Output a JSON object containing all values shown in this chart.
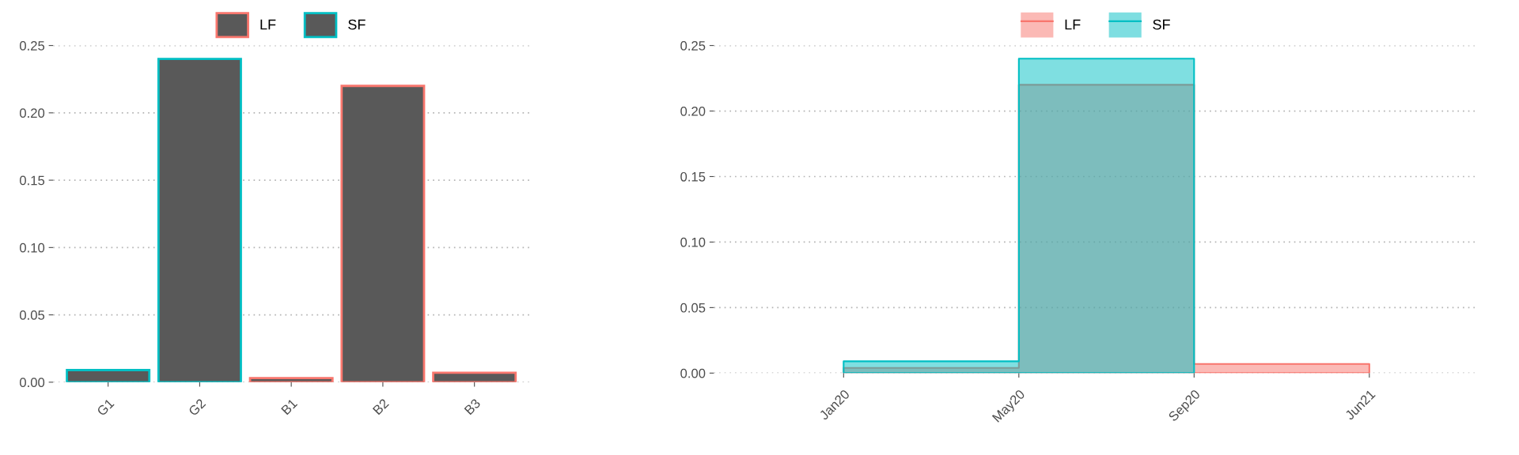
{
  "chart_data": [
    {
      "type": "bar",
      "categories": [
        "G1",
        "G2",
        "B1",
        "B2",
        "B3"
      ],
      "legend": "top",
      "series": [
        {
          "name": "LF",
          "color": "#f8766d",
          "values": [
            null,
            null,
            0.003,
            0.22,
            0.007
          ]
        },
        {
          "name": "SF",
          "color": "#00bfc4",
          "values": [
            0.009,
            0.24,
            null,
            null,
            null
          ]
        }
      ],
      "ylim": [
        0,
        0.25
      ],
      "yticks": [
        {
          "value": 0,
          "label": "0.00"
        },
        0.05,
        {
          "value": 0.1,
          "label": "0.10"
        },
        0.15,
        {
          "value": 0.2,
          "label": "0.20"
        },
        0.25
      ],
      "grid": "y"
    },
    {
      "type": "area",
      "categories": [
        "Jan20",
        "May20",
        "Sep20",
        "Jun21"
      ],
      "legend": "top",
      "series": [
        {
          "name": "LF",
          "color": "#f8766d",
          "values": [
            0.004,
            0.22,
            0.007,
            0.007
          ]
        },
        {
          "name": "SF",
          "color": "#00bfc4",
          "values": [
            0.009,
            0.24,
            0.24,
            null
          ]
        }
      ],
      "ylim": [
        0,
        0.25
      ],
      "yticks": [
        {
          "value": 0,
          "label": "0.00"
        },
        0.05,
        {
          "value": 0.1,
          "label": "0.10"
        },
        0.15,
        {
          "value": 0.2,
          "label": "0.20"
        },
        0.25
      ],
      "grid": "y"
    }
  ]
}
